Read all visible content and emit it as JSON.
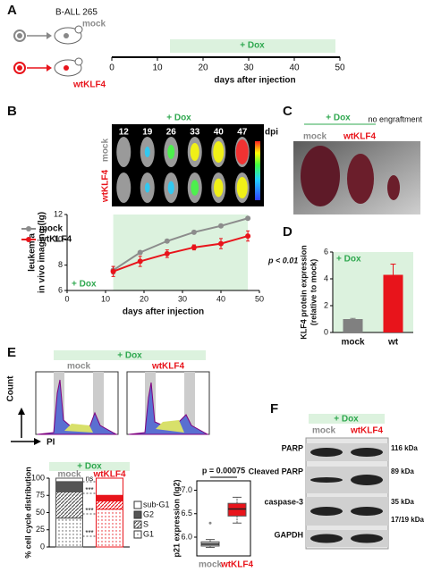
{
  "panel_a": {
    "letter": "A",
    "cell_line": "B-ALL 265",
    "mock": "mock",
    "wtklf4": "wtKLF4",
    "dox": "+ Dox",
    "ticks": [
      0,
      10,
      20,
      30,
      40,
      50
    ],
    "xlabel": "days after injection"
  },
  "panel_b": {
    "letter": "B",
    "dox": "+ Dox",
    "days": [
      12,
      19,
      26,
      33,
      40,
      47
    ],
    "unit": "dpi",
    "rows": [
      "mock",
      "wtKLF4"
    ]
  },
  "panel_c": {
    "letter": "C",
    "dox": "+ Dox",
    "mock": "mock",
    "wtklf4": "wtKLF4",
    "control": "no engraftment"
  },
  "panel_d": {
    "letter": "D"
  },
  "panel_e": {
    "letter": "E",
    "dox": "+ Dox",
    "mock": "mock",
    "wtklf4": "wtKLF4",
    "ylabel": "Count",
    "xlabel": "PI"
  },
  "panel_f": {
    "letter": "F",
    "dox": "+ Dox",
    "mock": "mock",
    "wtklf4": "wtKLF4",
    "bands": [
      {
        "label": "PARP",
        "sizes": [
          "116 kDa"
        ]
      },
      {
        "label": "Cleaved PARP",
        "sizes": [
          "89 kDa"
        ]
      },
      {
        "label": "caspase-3",
        "sizes": [
          "35 kDa",
          "17/19 kDa"
        ]
      },
      {
        "label": "GAPDH"
      }
    ]
  },
  "chart_data": [
    {
      "type": "line",
      "ylabel": [
        "leukemia",
        "in vivo imaging (lg)"
      ],
      "xlabel": "days after injection",
      "x": [
        12,
        19,
        26,
        33,
        40,
        47
      ],
      "xlim": [
        0,
        50
      ],
      "xticks": [
        0,
        10,
        20,
        30,
        40,
        50
      ],
      "ylim": [
        6,
        12
      ],
      "yticks": [
        6,
        8,
        10,
        12
      ],
      "series": [
        {
          "name": "mock",
          "color": "#8c8c8c",
          "values": [
            7.6,
            9.0,
            9.9,
            10.6,
            11.1,
            11.7
          ],
          "errors": [
            0.3,
            0.1,
            0.1,
            0.1,
            0.1,
            0.1
          ]
        },
        {
          "name": "wtKLF4",
          "color": "#e8141b",
          "values": [
            7.5,
            8.3,
            8.9,
            9.4,
            9.7,
            10.3
          ],
          "errors": [
            0.4,
            0.4,
            0.3,
            0.2,
            0.4,
            0.4
          ]
        }
      ],
      "annotations": [
        "p < 0.01",
        "+ Dox"
      ]
    },
    {
      "type": "bar",
      "ylabel": [
        "KLF4 protein expression",
        "(relative to mock)"
      ],
      "categories": [
        "mock",
        "wt"
      ],
      "values": [
        1.0,
        4.3
      ],
      "errors": [
        0.05,
        0.8
      ],
      "colors": [
        "#808080",
        "#e8141b"
      ],
      "ylim": [
        0,
        6
      ],
      "yticks": [
        0,
        2,
        4,
        6
      ],
      "annotation": "+ Dox"
    },
    {
      "type": "stacked_bar",
      "title": "+ Dox",
      "ylabel": "% cell cycle distribution",
      "categories": [
        "mock",
        "wtKLF4"
      ],
      "colors": [
        "#555555",
        "#e8141b"
      ],
      "series": [
        {
          "name": "G1",
          "fill": "dots",
          "values": [
            42,
            55
          ]
        },
        {
          "name": "S",
          "fill": "hatch",
          "values": [
            38,
            12
          ]
        },
        {
          "name": "G2",
          "fill": "solid",
          "values": [
            15,
            8
          ]
        },
        {
          "name": "sub-G1",
          "fill": "none",
          "values": [
            5,
            25
          ]
        }
      ],
      "ylim": [
        0,
        100
      ],
      "yticks": [
        0,
        25,
        50,
        75,
        100
      ],
      "annotations": [
        "ns",
        "***",
        "***",
        "***"
      ]
    },
    {
      "type": "box",
      "ylabel": "p21 expression (lg2)",
      "categories": [
        "mock",
        "wtKLF4"
      ],
      "colors": [
        "#bfbfbf",
        "#e8141b"
      ],
      "boxes": [
        {
          "min": 5.78,
          "q1": 5.81,
          "median": 5.85,
          "q3": 5.9,
          "max": 5.95,
          "outliers": [
            6.3
          ]
        },
        {
          "min": 6.3,
          "q1": 6.45,
          "median": 6.6,
          "q3": 6.72,
          "max": 6.85
        }
      ],
      "ylim": [
        5.6,
        7.2
      ],
      "yticks": [
        {
          "value": 6,
          "label": "6.0"
        },
        6.5,
        {
          "value": 7,
          "label": "7.0"
        }
      ],
      "annotation": "p = 0.00075"
    }
  ]
}
